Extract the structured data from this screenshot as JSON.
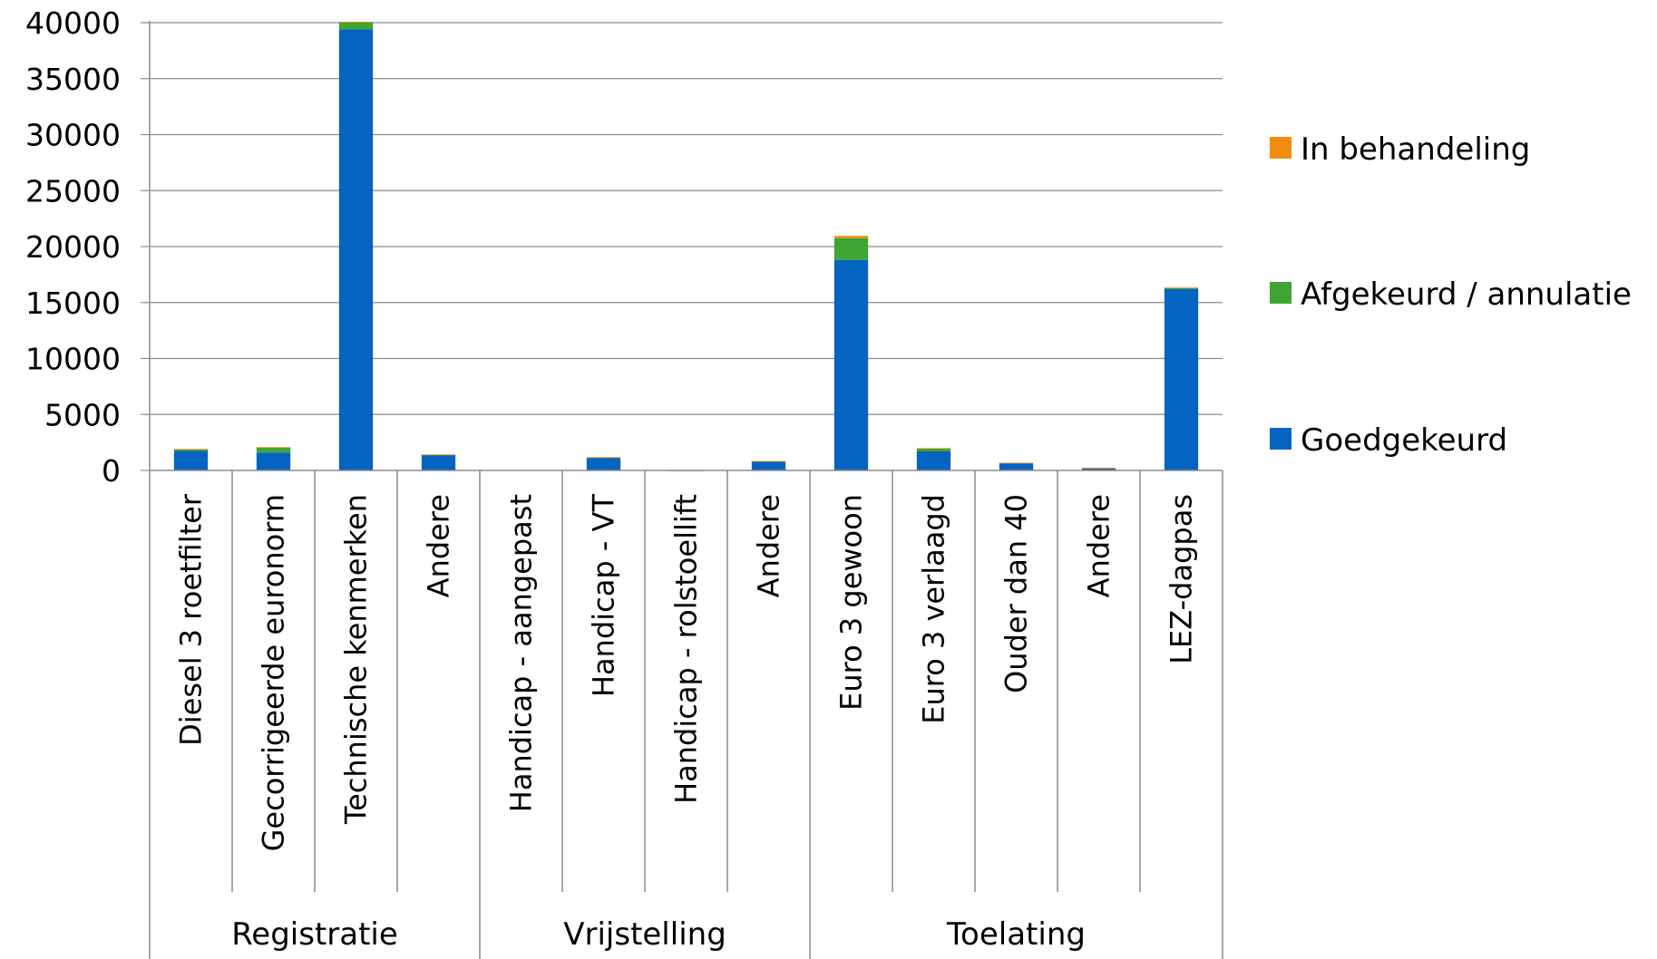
{
  "chart_data": {
    "type": "bar",
    "stacked": true,
    "categories": [
      "Diesel 3 roetfilter",
      "Gecorrigeerde euronorm",
      "Technische kenmerken",
      "Andere",
      "Handicap - aangepast",
      "Handicap - VT",
      "Handicap - rolstoellift",
      "Andere",
      "Euro 3 gewoon",
      "Euro 3 verlaagd",
      "Ouder dan 40",
      "Andere",
      "LEZ-dagpas"
    ],
    "groups": [
      {
        "label": "Registratie",
        "start": 0,
        "count": 4
      },
      {
        "label": "Vrijstelling",
        "start": 4,
        "count": 4
      },
      {
        "label": "Toelating",
        "start": 8,
        "count": 5
      }
    ],
    "series": [
      {
        "name": "Goedgekeurd",
        "color": "#0563C1",
        "values": [
          1750,
          1600,
          39400,
          1400,
          30,
          1100,
          10,
          800,
          18800,
          1700,
          650,
          200,
          16200
        ]
      },
      {
        "name": "Afgekeurd / annulatie",
        "color": "#3FA535",
        "values": [
          150,
          450,
          650,
          20,
          5,
          80,
          2,
          30,
          1950,
          250,
          30,
          20,
          120
        ]
      },
      {
        "name": "In behandeling",
        "color": "#F28C0F",
        "values": [
          20,
          30,
          30,
          5,
          0,
          10,
          0,
          5,
          200,
          40,
          5,
          5,
          20
        ]
      }
    ],
    "yticks": [
      0,
      5000,
      10000,
      15000,
      20000,
      25000,
      30000,
      35000,
      40000
    ],
    "ylim": [
      0,
      40000
    ],
    "grid": true,
    "legend_position": "right"
  }
}
